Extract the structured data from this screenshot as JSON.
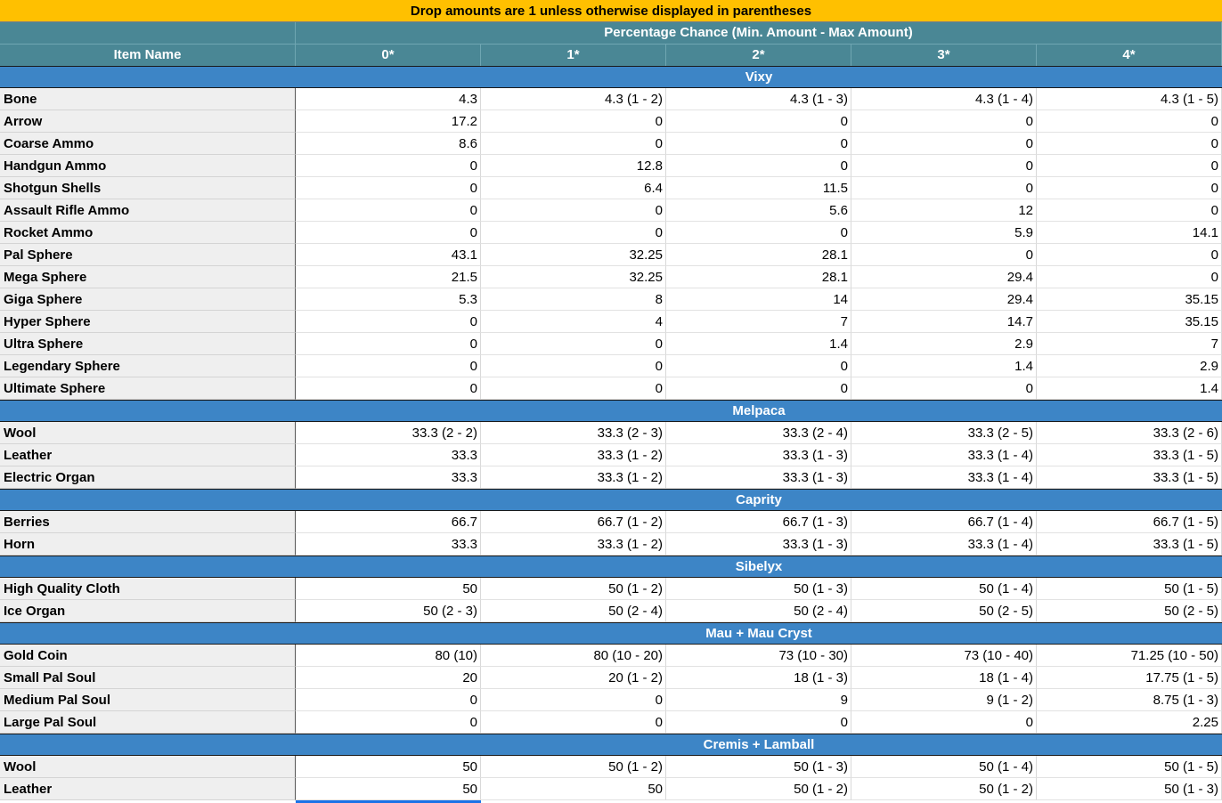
{
  "banner": "Drop amounts are 1 unless otherwise displayed in parentheses",
  "header": {
    "item_name": "Item Name",
    "percent_title": "Percentage Chance (Min. Amount - Max Amount)",
    "columns": [
      "0*",
      "1*",
      "2*",
      "3*",
      "4*"
    ]
  },
  "sections": [
    {
      "name": "Vixy",
      "rows": [
        {
          "item": "Bone",
          "values": [
            "4.3",
            "4.3 (1 - 2)",
            "4.3 (1 - 3)",
            "4.3 (1 - 4)",
            "4.3 (1 - 5)"
          ]
        },
        {
          "item": "Arrow",
          "values": [
            "17.2",
            "0",
            "0",
            "0",
            "0"
          ]
        },
        {
          "item": "Coarse Ammo",
          "values": [
            "8.6",
            "0",
            "0",
            "0",
            "0"
          ]
        },
        {
          "item": "Handgun Ammo",
          "values": [
            "0",
            "12.8",
            "0",
            "0",
            "0"
          ]
        },
        {
          "item": "Shotgun Shells",
          "values": [
            "0",
            "6.4",
            "11.5",
            "0",
            "0"
          ]
        },
        {
          "item": "Assault Rifle Ammo",
          "values": [
            "0",
            "0",
            "5.6",
            "12",
            "0"
          ]
        },
        {
          "item": "Rocket Ammo",
          "values": [
            "0",
            "0",
            "0",
            "5.9",
            "14.1"
          ]
        },
        {
          "item": "Pal Sphere",
          "values": [
            "43.1",
            "32.25",
            "28.1",
            "0",
            "0"
          ]
        },
        {
          "item": "Mega Sphere",
          "values": [
            "21.5",
            "32.25",
            "28.1",
            "29.4",
            "0"
          ]
        },
        {
          "item": "Giga Sphere",
          "values": [
            "5.3",
            "8",
            "14",
            "29.4",
            "35.15"
          ]
        },
        {
          "item": "Hyper Sphere",
          "values": [
            "0",
            "4",
            "7",
            "14.7",
            "35.15"
          ]
        },
        {
          "item": "Ultra Sphere",
          "values": [
            "0",
            "0",
            "1.4",
            "2.9",
            "7"
          ]
        },
        {
          "item": "Legendary Sphere",
          "values": [
            "0",
            "0",
            "0",
            "1.4",
            "2.9"
          ]
        },
        {
          "item": "Ultimate Sphere",
          "values": [
            "0",
            "0",
            "0",
            "0",
            "1.4"
          ]
        }
      ]
    },
    {
      "name": "Melpaca",
      "rows": [
        {
          "item": "Wool",
          "values": [
            "33.3 (2 - 2)",
            "33.3 (2 - 3)",
            "33.3 (2 - 4)",
            "33.3 (2 - 5)",
            "33.3 (2 - 6)"
          ]
        },
        {
          "item": "Leather",
          "values": [
            "33.3",
            "33.3 (1 - 2)",
            "33.3 (1 - 3)",
            "33.3 (1 - 4)",
            "33.3 (1 - 5)"
          ]
        },
        {
          "item": "Electric Organ",
          "values": [
            "33.3",
            "33.3 (1 - 2)",
            "33.3  (1 - 3)",
            "33.3 (1 - 4)",
            "33.3 (1 - 5)"
          ]
        }
      ]
    },
    {
      "name": "Caprity",
      "rows": [
        {
          "item": "Berries",
          "values": [
            "66.7",
            "66.7 (1 - 2)",
            "66.7 (1 - 3)",
            "66.7 (1 - 4)",
            "66.7 (1 - 5)"
          ]
        },
        {
          "item": "Horn",
          "values": [
            "33.3",
            "33.3 (1 - 2)",
            "33.3 (1 - 3)",
            "33.3 (1 - 4)",
            "33.3 (1 - 5)"
          ]
        }
      ]
    },
    {
      "name": "Sibelyx",
      "rows": [
        {
          "item": "High Quality Cloth",
          "values": [
            "50",
            "50 (1 - 2)",
            "50 (1 - 3)",
            "50 (1 - 4)",
            "50 (1 - 5)"
          ]
        },
        {
          "item": "Ice Organ",
          "values": [
            "50 (2 - 3)",
            "50 (2 - 4)",
            "50 (2 - 4)",
            "50 (2 - 5)",
            "50 (2 - 5)"
          ]
        }
      ]
    },
    {
      "name": "Mau + Mau Cryst",
      "rows": [
        {
          "item": "Gold Coin",
          "values": [
            "80 (10)",
            "80 (10 - 20)",
            "73 (10 - 30)",
            "73 (10 - 40)",
            "71.25 (10 - 50)"
          ]
        },
        {
          "item": "Small Pal Soul",
          "values": [
            "20",
            "20 (1 - 2)",
            "18 (1 - 3)",
            "18 (1 - 4)",
            "17.75 (1 - 5)"
          ]
        },
        {
          "item": "Medium Pal Soul",
          "values": [
            "0",
            "0",
            "9",
            "9 (1 - 2)",
            "8.75 (1 - 3)"
          ]
        },
        {
          "item": "Large Pal Soul",
          "values": [
            "0",
            "0",
            "0",
            "0",
            "2.25"
          ]
        }
      ]
    },
    {
      "name": "Cremis + Lamball",
      "rows": [
        {
          "item": "Wool",
          "values": [
            "50",
            "50 (1 - 2)",
            "50 (1 - 3)",
            "50 (1 - 4)",
            "50 (1 - 5)"
          ]
        },
        {
          "item": "Leather",
          "values": [
            "50",
            "50",
            "50 (1 - 2)",
            "50 (1 - 2)",
            "50 (1 - 3)"
          ]
        }
      ]
    }
  ]
}
